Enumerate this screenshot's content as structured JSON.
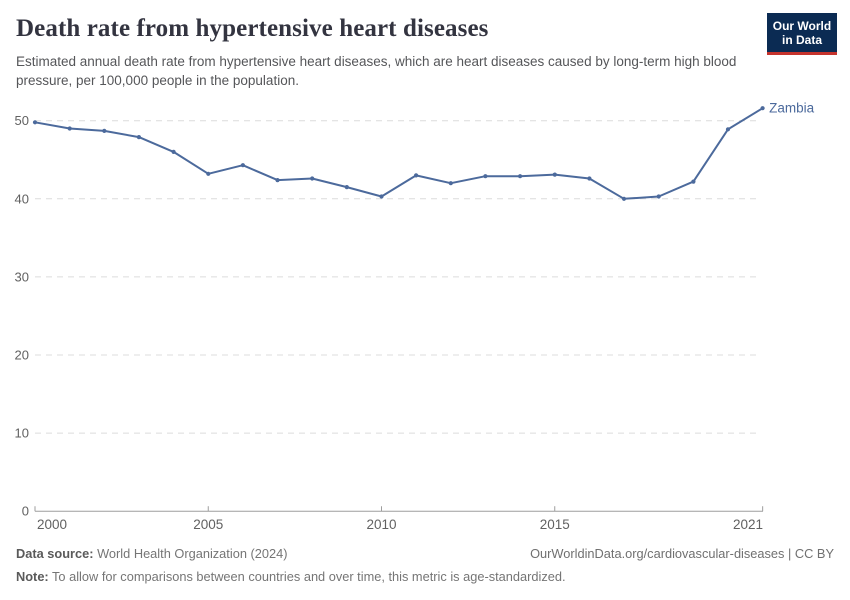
{
  "header": {
    "title": "Death rate from hypertensive heart diseases",
    "subtitle": "Estimated annual death rate from hypertensive heart diseases, which are heart diseases caused by long-term high blood pressure, per 100,000 people in the population."
  },
  "logo": {
    "line1": "Our World",
    "line2": "in Data",
    "background": "#0b2b53",
    "stripe": "#c5332d"
  },
  "chart_data": {
    "type": "line",
    "title": "Death rate from hypertensive heart diseases",
    "x": [
      2000,
      2001,
      2002,
      2003,
      2004,
      2005,
      2006,
      2007,
      2008,
      2009,
      2010,
      2011,
      2012,
      2013,
      2014,
      2015,
      2016,
      2017,
      2018,
      2019,
      2020,
      2021
    ],
    "series": [
      {
        "name": "Zambia",
        "color": "#4c6a9c",
        "values": [
          49.8,
          49.0,
          48.7,
          47.9,
          46.0,
          43.2,
          44.3,
          42.4,
          42.6,
          41.5,
          40.3,
          43.0,
          42.0,
          42.9,
          42.9,
          43.1,
          42.6,
          40.0,
          40.3,
          42.2,
          48.9,
          51.6
        ]
      }
    ],
    "xlabel": "",
    "ylabel": "",
    "xlim": [
      2000,
      2021
    ],
    "ylim": [
      0,
      50
    ],
    "xticks": [
      2000,
      2005,
      2010,
      2015,
      2021
    ],
    "yticks": [
      0,
      10,
      20,
      30,
      40,
      50
    ],
    "grid": "horizontal-dashed",
    "legend_position": "end-of-line",
    "grid_color": "#dcdcdc",
    "axis_color": "#9e9e9e",
    "tick_label_color": "#616161"
  },
  "footer": {
    "source_label": "Data source:",
    "source_value": " World Health Organization (2024)",
    "link": "OurWorldinData.org/cardiovascular-diseases | CC BY",
    "note_label": "Note:",
    "note_value": " To allow for comparisons between countries and over time, this metric is age-standardized."
  }
}
